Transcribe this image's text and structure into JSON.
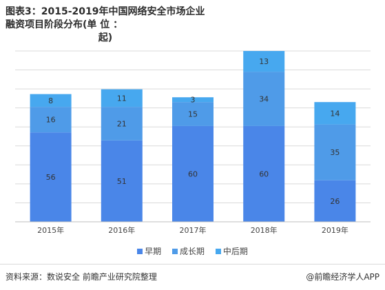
{
  "title": {
    "line1": "图表3：2015-2019年中国网络安全市场企业融资项目阶段分布(单 位 ：",
    "line2": "起)"
  },
  "footer": {
    "source": "资料来源：数说安全 前瞻产业研究院整理",
    "brand": "@前瞻经济学人APP"
  },
  "colors": {
    "early": "#4a86e8",
    "growth": "#4f9be8",
    "mid": "#47a8ef",
    "grid": "#d9d9d9",
    "axis": "#bfbfbf"
  },
  "chart_data": {
    "type": "bar",
    "stacked": true,
    "categories": [
      "2015年",
      "2016年",
      "2017年",
      "2018年",
      "2019年"
    ],
    "series": [
      {
        "name": "早期",
        "values": [
          56,
          51,
          60,
          60,
          26
        ]
      },
      {
        "name": "成长期",
        "values": [
          16,
          21,
          15,
          34,
          35
        ]
      },
      {
        "name": "中后期",
        "values": [
          8,
          11,
          3,
          13,
          14
        ]
      }
    ],
    "title": "图表3：2015-2019年中国网络安全市场企业融资项目阶段分布(单 位 ：起)",
    "legend_position": "bottom",
    "grid": true
  }
}
